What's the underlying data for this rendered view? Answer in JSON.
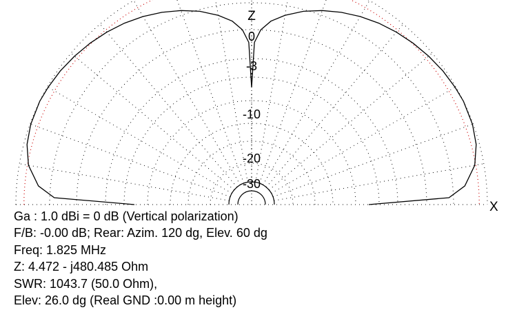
{
  "chart_data": {
    "type": "polar",
    "pattern": "elevation",
    "axes": {
      "vertical": "Z",
      "horizontal": "X"
    },
    "ring_labels_db": [
      "0",
      "-3",
      "-10",
      "-20",
      "-30"
    ],
    "ring_db": [
      0,
      -3,
      -10,
      -20,
      -30
    ],
    "elevation_grid_step_deg": 10,
    "pattern_points": [
      {
        "elev_deg": 0,
        "gain_db": -60
      },
      {
        "elev_deg": 2,
        "gain_db": -15.2
      },
      {
        "elev_deg": 5,
        "gain_db": -8.3
      },
      {
        "elev_deg": 10,
        "gain_db": -3.4
      },
      {
        "elev_deg": 15,
        "gain_db": -1.2
      },
      {
        "elev_deg": 20,
        "gain_db": -0.25
      },
      {
        "elev_deg": 26,
        "gain_db": 0
      },
      {
        "elev_deg": 30,
        "gain_db": -0.3
      },
      {
        "elev_deg": 35,
        "gain_db": -0.85
      },
      {
        "elev_deg": 40,
        "gain_db": -1.7
      },
      {
        "elev_deg": 45,
        "gain_db": -2.7
      },
      {
        "elev_deg": 50,
        "gain_db": -3.9
      },
      {
        "elev_deg": 55,
        "gain_db": -5.3
      },
      {
        "elev_deg": 60,
        "gain_db": -7.0
      },
      {
        "elev_deg": 65,
        "gain_db": -9.0
      },
      {
        "elev_deg": 70,
        "gain_db": -11.3
      },
      {
        "elev_deg": 75,
        "gain_db": -14.0
      },
      {
        "elev_deg": 80,
        "gain_db": -17.5
      },
      {
        "elev_deg": 84,
        "gain_db": -21.0
      },
      {
        "elev_deg": 87,
        "gain_db": -25.5
      },
      {
        "elev_deg": 89,
        "gain_db": -32
      },
      {
        "elev_deg": 90,
        "gain_db": -60
      }
    ],
    "colors": {
      "grid": "#000000",
      "minus3_ring": "#cc0000",
      "pattern": "#000000"
    }
  },
  "info_lines": [
    "Ga : 1.0 dBi = 0 dB  (Vertical polarization)",
    "F/B: -0.00 dB; Rear: Azim. 120 dg,  Elev. 60 dg",
    "Freq: 1.825 MHz",
    "Z: 4.472 - j480.485 Ohm",
    "SWR: 1043.7 (50.0 Ohm),",
    "Elev: 26.0 dg (Real GND  :0.00 m height)"
  ]
}
